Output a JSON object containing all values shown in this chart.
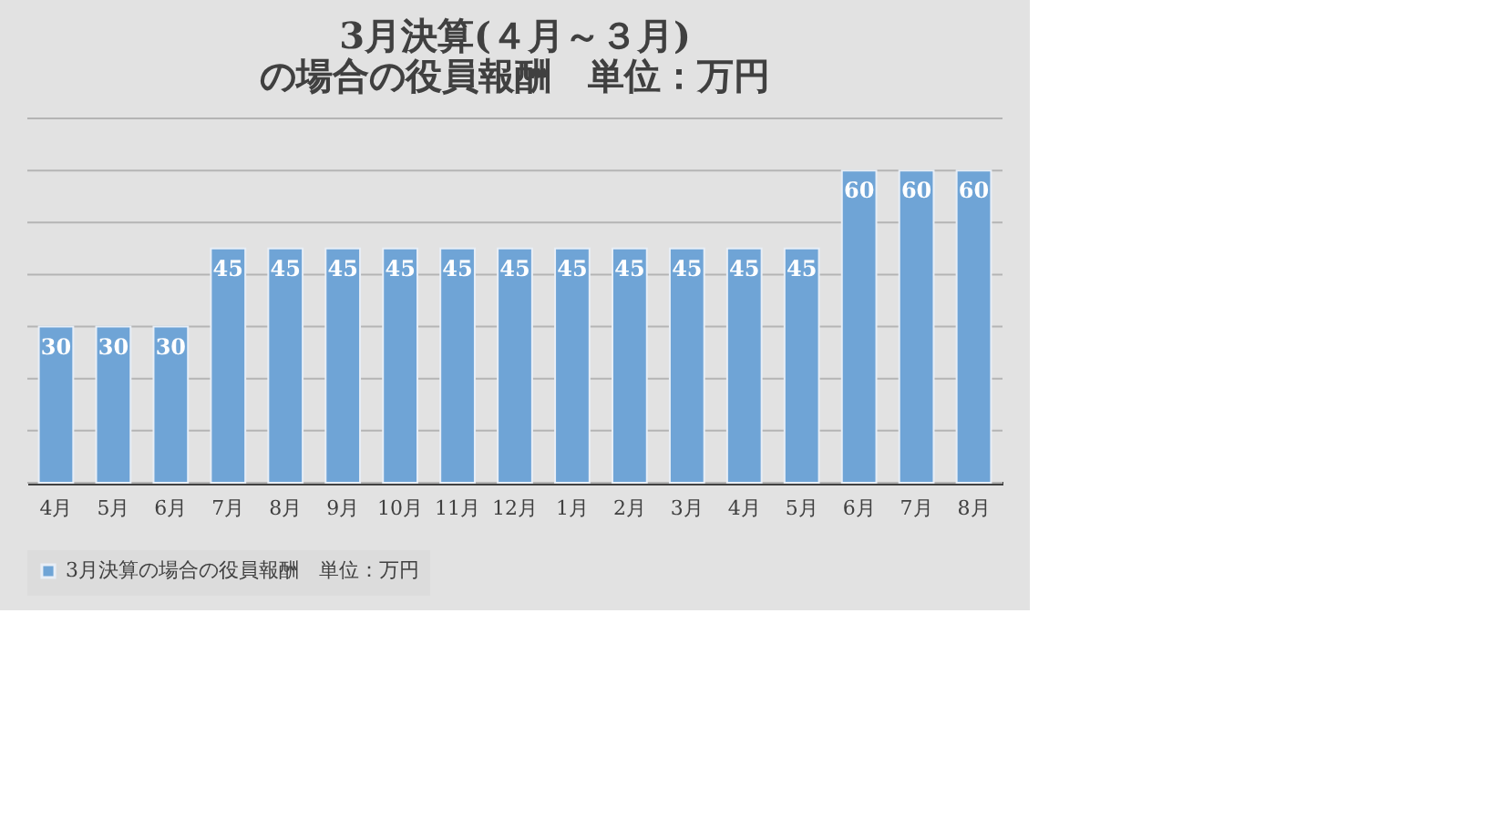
{
  "chart_data": {
    "type": "bar",
    "title": "3月決算(４月～３月)\nの場合の役員報酬　単位：万円",
    "categories": [
      "4月",
      "5月",
      "6月",
      "7月",
      "8月",
      "9月",
      "10月",
      "11月",
      "12月",
      "1月",
      "2月",
      "3月",
      "4月",
      "5月",
      "6月",
      "7月",
      "8月"
    ],
    "series": [
      {
        "name": "3月決算の場合の役員報酬　単位：万円",
        "color": "#6fa4d6",
        "values": [
          30,
          30,
          30,
          45,
          45,
          45,
          45,
          45,
          45,
          45,
          45,
          45,
          45,
          45,
          60,
          60,
          60
        ]
      }
    ],
    "ylim": [
      0,
      70
    ],
    "yticks": [
      {
        "value": 0,
        "label": null
      },
      {
        "value": 10,
        "label": null
      },
      {
        "value": 20,
        "label": null
      },
      {
        "value": 30,
        "label": null
      },
      {
        "value": 40,
        "label": null
      },
      {
        "value": 50,
        "label": null
      },
      {
        "value": 60,
        "label": null
      },
      {
        "value": 70,
        "label": null
      }
    ],
    "tick_labels": "x",
    "grid": "y",
    "data_labels": true,
    "legend": "bottom"
  }
}
